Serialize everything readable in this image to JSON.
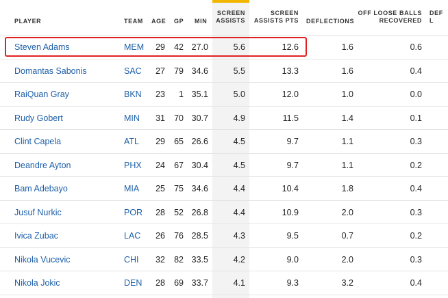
{
  "table": {
    "headers": {
      "player": "PLAYER",
      "team": "TEAM",
      "age": "AGE",
      "gp": "GP",
      "min": "MIN",
      "screen_assists": "SCREEN\nASSISTS",
      "screen_assists_pts": "SCREEN\nASSISTS PTS",
      "deflections": "DEFLECTIONS",
      "off_loose_balls": "OFF LOOSE BALLS\nRECOVERED",
      "def_loose": "DEF L"
    },
    "sorted_column": "screen_assists",
    "rows": [
      {
        "player": "Steven Adams",
        "team": "MEM",
        "age": "29",
        "gp": "42",
        "min": "27.0",
        "sa": "5.6",
        "sapts": "12.6",
        "defl": "1.6",
        "olb": "0.6",
        "highlighted": true
      },
      {
        "player": "Domantas Sabonis",
        "team": "SAC",
        "age": "27",
        "gp": "79",
        "min": "34.6",
        "sa": "5.5",
        "sapts": "13.3",
        "defl": "1.6",
        "olb": "0.4"
      },
      {
        "player": "RaiQuan Gray",
        "team": "BKN",
        "age": "23",
        "gp": "1",
        "min": "35.1",
        "sa": "5.0",
        "sapts": "12.0",
        "defl": "1.0",
        "olb": "0.0"
      },
      {
        "player": "Rudy Gobert",
        "team": "MIN",
        "age": "31",
        "gp": "70",
        "min": "30.7",
        "sa": "4.9",
        "sapts": "11.5",
        "defl": "1.4",
        "olb": "0.1"
      },
      {
        "player": "Clint Capela",
        "team": "ATL",
        "age": "29",
        "gp": "65",
        "min": "26.6",
        "sa": "4.5",
        "sapts": "9.7",
        "defl": "1.1",
        "olb": "0.3"
      },
      {
        "player": "Deandre Ayton",
        "team": "PHX",
        "age": "24",
        "gp": "67",
        "min": "30.4",
        "sa": "4.5",
        "sapts": "9.7",
        "defl": "1.1",
        "olb": "0.2"
      },
      {
        "player": "Bam Adebayo",
        "team": "MIA",
        "age": "25",
        "gp": "75",
        "min": "34.6",
        "sa": "4.4",
        "sapts": "10.4",
        "defl": "1.8",
        "olb": "0.4"
      },
      {
        "player": "Jusuf Nurkic",
        "team": "POR",
        "age": "28",
        "gp": "52",
        "min": "26.8",
        "sa": "4.4",
        "sapts": "10.9",
        "defl": "2.0",
        "olb": "0.3"
      },
      {
        "player": "Ivica Zubac",
        "team": "LAC",
        "age": "26",
        "gp": "76",
        "min": "28.5",
        "sa": "4.3",
        "sapts": "9.5",
        "defl": "0.7",
        "olb": "0.2"
      },
      {
        "player": "Nikola Vucevic",
        "team": "CHI",
        "age": "32",
        "gp": "82",
        "min": "33.5",
        "sa": "4.2",
        "sapts": "9.0",
        "defl": "2.0",
        "olb": "0.3"
      },
      {
        "player": "Nikola Jokic",
        "team": "DEN",
        "age": "28",
        "gp": "69",
        "min": "33.7",
        "sa": "4.1",
        "sapts": "9.3",
        "defl": "3.2",
        "olb": "0.4"
      }
    ]
  },
  "colors": {
    "link": "#1d5fa8",
    "sorted_bar": "#f2b600",
    "highlight_box": "#e02020"
  }
}
